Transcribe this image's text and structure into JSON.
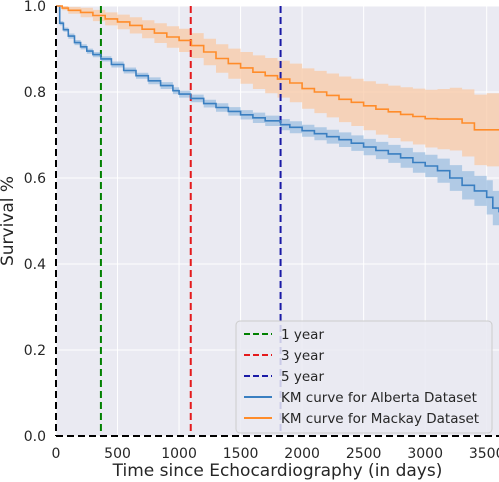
{
  "chart_data": {
    "type": "line",
    "xlabel": "Time since Echocardiography (in days)",
    "ylabel": "Survival %",
    "xlim": [
      0,
      3600
    ],
    "ylim": [
      0,
      1.0
    ],
    "x_ticks": [
      0,
      500,
      1000,
      1500,
      2000,
      2500,
      3000,
      3500
    ],
    "y_ticks": [
      0.0,
      0.2,
      0.4,
      0.6,
      0.8,
      1.0
    ],
    "x_tick_labels": [
      "0",
      "500",
      "1000",
      "1500",
      "2000",
      "2500",
      "3000",
      "3500"
    ],
    "y_tick_labels": [
      "0.0",
      "0.2",
      "0.4",
      "0.6",
      "0.8",
      "1.0"
    ],
    "grid": true,
    "legend_position": "bottom-right",
    "reference_lines": [
      {
        "name": "1 year",
        "x": 365,
        "color": "#008000",
        "style": "dashed"
      },
      {
        "name": "3 year",
        "x": 1095,
        "color": "#e41a1c",
        "style": "dashed"
      },
      {
        "name": "5 year",
        "x": 1825,
        "color": "#1a1aa6",
        "style": "dashed"
      }
    ],
    "series": [
      {
        "name": "KM curve for Alberta Dataset",
        "color": "#3a7fc1",
        "band_color": "#9dbfe0",
        "x": [
          0,
          30,
          60,
          100,
          150,
          200,
          250,
          300,
          365,
          450,
          550,
          650,
          750,
          850,
          950,
          1000,
          1095,
          1200,
          1300,
          1400,
          1500,
          1600,
          1700,
          1825,
          1900,
          2000,
          2100,
          2200,
          2300,
          2400,
          2500,
          2600,
          2700,
          2800,
          2900,
          3000,
          3100,
          3200,
          3300,
          3400,
          3500,
          3550,
          3600
        ],
        "y": [
          1.0,
          0.96,
          0.945,
          0.93,
          0.915,
          0.905,
          0.895,
          0.887,
          0.877,
          0.864,
          0.85,
          0.838,
          0.826,
          0.815,
          0.803,
          0.795,
          0.785,
          0.773,
          0.764,
          0.755,
          0.747,
          0.74,
          0.733,
          0.724,
          0.718,
          0.71,
          0.703,
          0.696,
          0.689,
          0.681,
          0.672,
          0.664,
          0.656,
          0.647,
          0.636,
          0.628,
          0.617,
          0.6,
          0.583,
          0.57,
          0.555,
          0.53,
          0.52
        ],
        "lower": [
          1.0,
          0.955,
          0.94,
          0.924,
          0.909,
          0.899,
          0.889,
          0.881,
          0.871,
          0.857,
          0.843,
          0.831,
          0.818,
          0.807,
          0.795,
          0.787,
          0.776,
          0.764,
          0.754,
          0.745,
          0.736,
          0.728,
          0.721,
          0.711,
          0.704,
          0.696,
          0.688,
          0.68,
          0.672,
          0.663,
          0.653,
          0.644,
          0.635,
          0.624,
          0.612,
          0.602,
          0.589,
          0.57,
          0.55,
          0.535,
          0.515,
          0.49,
          0.475
        ],
        "upper": [
          1.0,
          0.965,
          0.95,
          0.936,
          0.921,
          0.911,
          0.901,
          0.893,
          0.883,
          0.871,
          0.857,
          0.845,
          0.834,
          0.823,
          0.811,
          0.803,
          0.794,
          0.782,
          0.774,
          0.765,
          0.758,
          0.752,
          0.745,
          0.737,
          0.732,
          0.724,
          0.718,
          0.712,
          0.706,
          0.699,
          0.691,
          0.684,
          0.677,
          0.67,
          0.66,
          0.654,
          0.645,
          0.63,
          0.616,
          0.605,
          0.595,
          0.57,
          0.565
        ]
      },
      {
        "name": "KM curve for Mackay Dataset",
        "color": "#ff8c2a",
        "band_color": "#f8c9a6",
        "x": [
          0,
          50,
          100,
          200,
          300,
          400,
          500,
          600,
          700,
          800,
          900,
          1000,
          1100,
          1200,
          1300,
          1400,
          1500,
          1600,
          1700,
          1800,
          1900,
          2000,
          2100,
          2200,
          2300,
          2400,
          2500,
          2600,
          2700,
          2800,
          2900,
          3000,
          3100,
          3200,
          3300,
          3400,
          3500,
          3600
        ],
        "y": [
          1.0,
          0.995,
          0.99,
          0.985,
          0.978,
          0.97,
          0.963,
          0.955,
          0.946,
          0.937,
          0.928,
          0.92,
          0.908,
          0.893,
          0.878,
          0.866,
          0.856,
          0.846,
          0.838,
          0.83,
          0.821,
          0.808,
          0.8,
          0.792,
          0.783,
          0.776,
          0.768,
          0.76,
          0.754,
          0.748,
          0.743,
          0.738,
          0.737,
          0.737,
          0.728,
          0.712,
          0.712,
          0.712
        ],
        "lower": [
          1.0,
          0.99,
          0.982,
          0.974,
          0.965,
          0.955,
          0.946,
          0.936,
          0.925,
          0.914,
          0.903,
          0.893,
          0.879,
          0.862,
          0.845,
          0.831,
          0.819,
          0.807,
          0.797,
          0.787,
          0.776,
          0.761,
          0.751,
          0.741,
          0.73,
          0.721,
          0.711,
          0.701,
          0.693,
          0.685,
          0.678,
          0.671,
          0.667,
          0.664,
          0.65,
          0.63,
          0.627,
          0.625
        ],
        "upper": [
          1.0,
          1.0,
          0.998,
          0.996,
          0.991,
          0.985,
          0.98,
          0.974,
          0.967,
          0.96,
          0.953,
          0.947,
          0.937,
          0.924,
          0.911,
          0.901,
          0.893,
          0.885,
          0.879,
          0.873,
          0.866,
          0.855,
          0.849,
          0.843,
          0.836,
          0.831,
          0.825,
          0.819,
          0.815,
          0.811,
          0.808,
          0.805,
          0.807,
          0.81,
          0.806,
          0.794,
          0.797,
          0.799
        ]
      }
    ]
  },
  "legend": {
    "items": [
      {
        "label": "1 year",
        "color": "#008000",
        "dashed": true
      },
      {
        "label": "3 year",
        "color": "#e41a1c",
        "dashed": true
      },
      {
        "label": "5 year",
        "color": "#1a1aa6",
        "dashed": true
      },
      {
        "label": "KM curve for Alberta Dataset",
        "color": "#3a7fc1",
        "dashed": false
      },
      {
        "label": "KM curve for Mackay Dataset",
        "color": "#ff8c2a",
        "dashed": false
      }
    ]
  }
}
